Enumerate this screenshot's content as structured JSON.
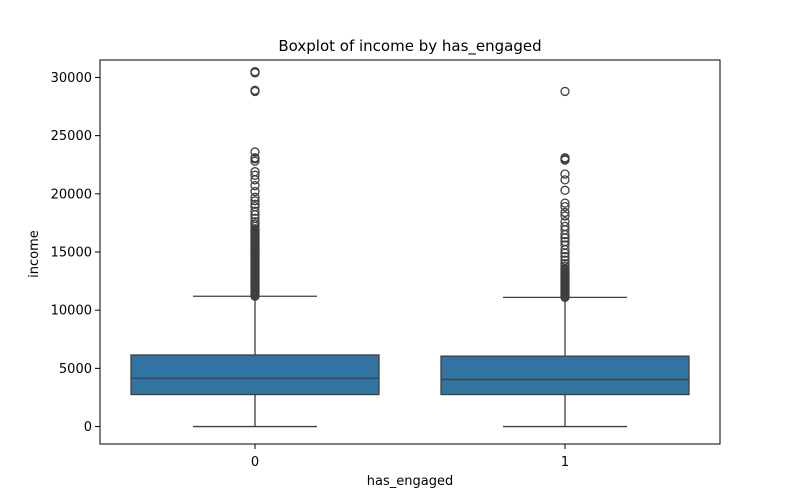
{
  "chart_data": {
    "type": "boxplot",
    "title": "Boxplot of income by has_engaged",
    "xlabel": "has_engaged",
    "ylabel": "income",
    "categories": [
      "0",
      "1"
    ],
    "ylim": [
      -1500,
      31500
    ],
    "yticks": [
      0,
      5000,
      10000,
      15000,
      20000,
      25000,
      30000
    ],
    "grid": false,
    "box_color": "#3274a1",
    "line_color": "#3f3f3f",
    "boxes": [
      {
        "category": "0",
        "whisker_low": 0,
        "q1": 2750,
        "median": 4150,
        "q3": 6150,
        "whisker_high": 11200,
        "outliers": [
          11200,
          11300,
          11400,
          11500,
          11600,
          11700,
          11800,
          11900,
          12000,
          12100,
          12200,
          12300,
          12400,
          12500,
          12600,
          12700,
          12800,
          12900,
          13000,
          13100,
          13200,
          13300,
          13400,
          13500,
          13600,
          13700,
          13800,
          13900,
          14000,
          14100,
          14200,
          14300,
          14400,
          14500,
          14600,
          14700,
          14800,
          14900,
          15000,
          15100,
          15200,
          15300,
          15400,
          15500,
          15600,
          15700,
          15800,
          15900,
          16000,
          16100,
          16200,
          16300,
          16400,
          16500,
          16600,
          16700,
          16800,
          16900,
          17000,
          17200,
          17400,
          17600,
          17900,
          18200,
          18500,
          18900,
          19100,
          19400,
          19700,
          20200,
          20700,
          21200,
          21600,
          21900,
          22800,
          23000,
          23100,
          23600,
          28800,
          28900,
          30400,
          30500
        ]
      },
      {
        "category": "1",
        "whisker_low": 0,
        "q1": 2750,
        "median": 4050,
        "q3": 6050,
        "whisker_high": 11100,
        "outliers": [
          11100,
          11200,
          11300,
          11400,
          11500,
          11600,
          11700,
          11800,
          11900,
          12000,
          12100,
          12200,
          12300,
          12400,
          12500,
          12600,
          12700,
          12800,
          12900,
          13000,
          13100,
          13200,
          13300,
          13400,
          13500,
          13600,
          13800,
          14000,
          14300,
          14600,
          14900,
          15200,
          15600,
          15900,
          16200,
          16500,
          16900,
          17200,
          17600,
          18100,
          18400,
          18900,
          19200,
          20300,
          21200,
          21700,
          22900,
          23000,
          23100,
          28800
        ]
      }
    ]
  }
}
